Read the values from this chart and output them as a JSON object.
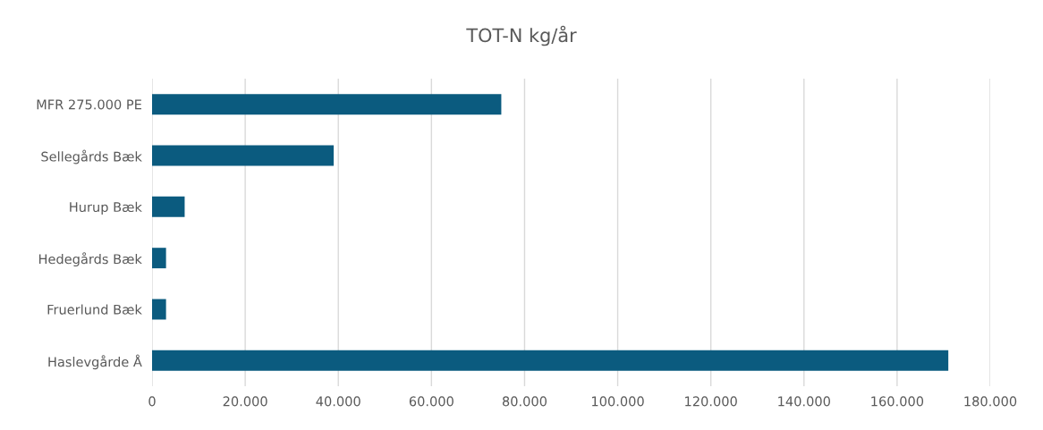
{
  "chart_data": {
    "type": "bar",
    "orientation": "horizontal",
    "title": "TOT-N kg/år",
    "categories": [
      "MFR 275.000 PE",
      "Sellegårds Bæk",
      "Hurup Bæk",
      "Hedegårds Bæk",
      "Fruerlund Bæk",
      "Haslevgårde Å"
    ],
    "values": [
      75000,
      39000,
      7000,
      3000,
      3000,
      171000
    ],
    "color": "#0b5b7f",
    "xlim": [
      0,
      180000
    ],
    "xticks": [
      {
        "value": 0,
        "label": "0"
      },
      {
        "value": 20000,
        "label": "20.000"
      },
      {
        "value": 40000,
        "label": "40.000"
      },
      {
        "value": 60000,
        "label": "60.000"
      },
      {
        "value": 80000,
        "label": "80.000"
      },
      {
        "value": 100000,
        "label": "100.000"
      },
      {
        "value": 120000,
        "label": "120.000"
      },
      {
        "value": 140000,
        "label": "140.000"
      },
      {
        "value": 160000,
        "label": "160.000"
      },
      {
        "value": 180000,
        "label": "180.000"
      }
    ],
    "grid": "x",
    "legend": false
  }
}
